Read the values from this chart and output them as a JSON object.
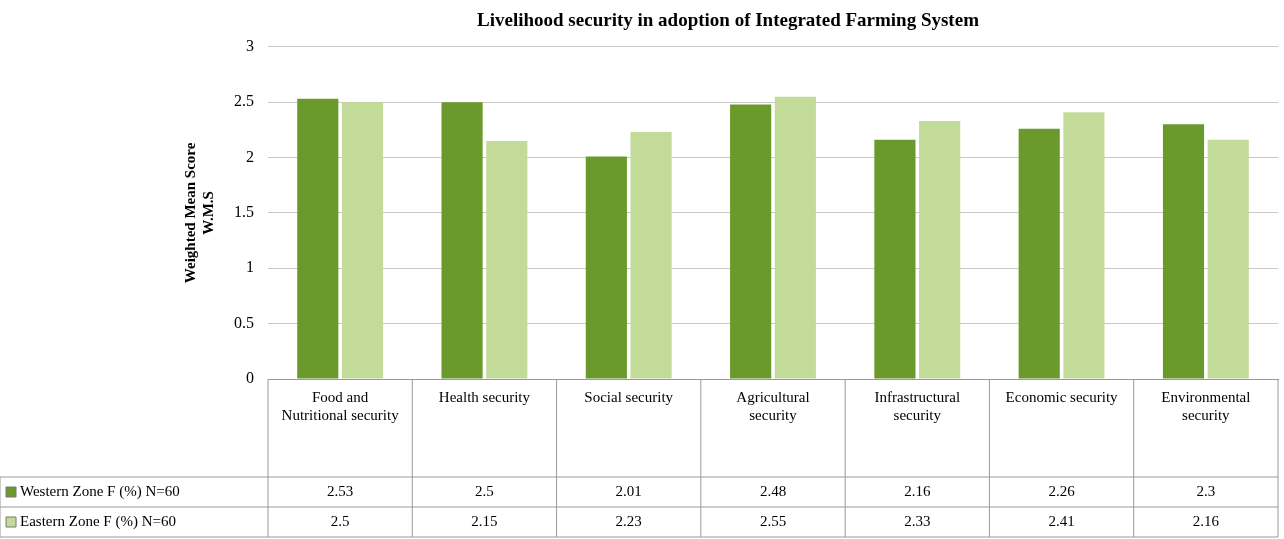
{
  "chart_data": {
    "type": "bar",
    "title": "Livelihood security in adoption of Integrated Farming System",
    "ylabel": "Weighted Mean Score\nW.M.S",
    "categories": [
      "Food and Nutritional security",
      "Health security",
      "Social security",
      "Agricultural security",
      "Infrastructural security",
      "Economic security",
      "Environmental security"
    ],
    "series": [
      {
        "name": "Western Zone F (%) N=60",
        "color": "#6b9a2c",
        "values": [
          2.53,
          2.5,
          2.01,
          2.48,
          2.16,
          2.26,
          2.3
        ]
      },
      {
        "name": "Eastern Zone F (%) N=60",
        "color": "#c3db98",
        "values": [
          2.5,
          2.15,
          2.23,
          2.55,
          2.33,
          2.41,
          2.16
        ]
      }
    ],
    "ylim": [
      0,
      3
    ],
    "yticks": [
      0,
      0.5,
      1,
      1.5,
      2,
      2.5,
      3
    ],
    "grid": "y",
    "legend": "bottom",
    "data_labels": true
  }
}
